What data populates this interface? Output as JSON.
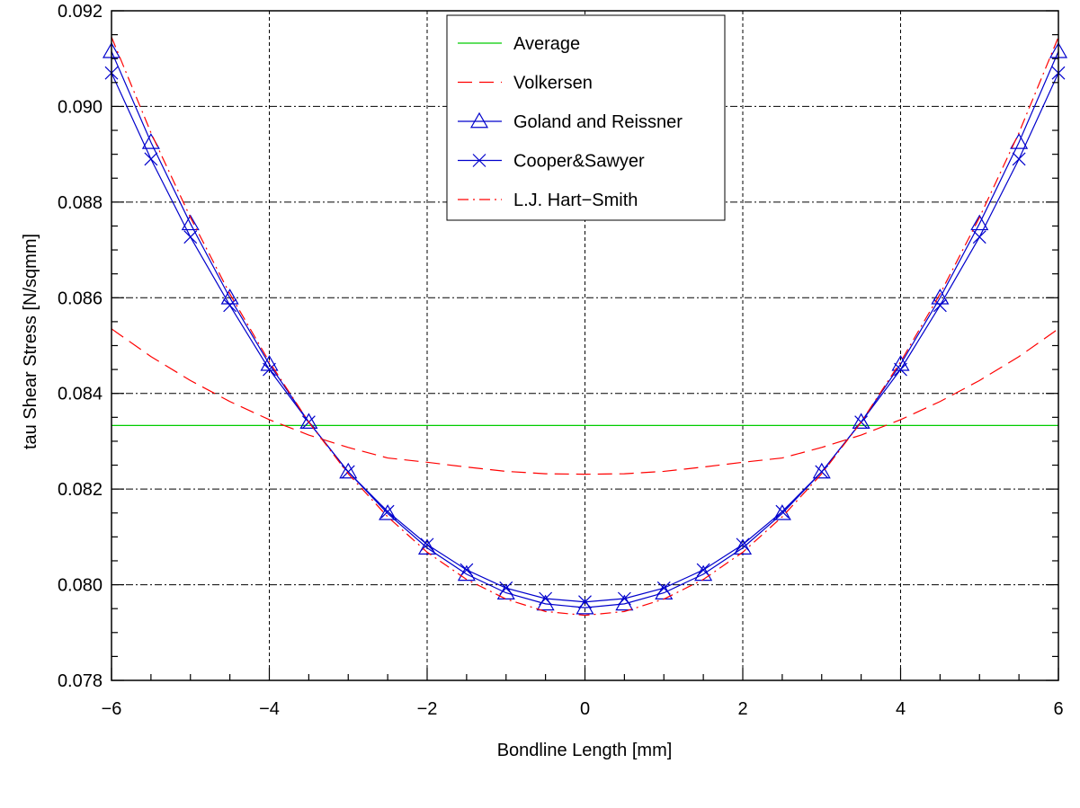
{
  "chart_data": {
    "type": "line",
    "title": "",
    "xlabel": "Bondline Length [mm]",
    "ylabel": "tau Shear Stress [N/sqmm]",
    "xlim": [
      -6,
      6
    ],
    "ylim": [
      0.078,
      0.092
    ],
    "xticks": [
      -6,
      -4,
      -2,
      0,
      2,
      4,
      6
    ],
    "xtick_labels": [
      "−6",
      "−4",
      "−2",
      "0",
      "2",
      "4",
      "6"
    ],
    "yticks": [
      0.078,
      0.08,
      0.082,
      0.084,
      0.086,
      0.088,
      0.09,
      0.092
    ],
    "ytick_labels": [
      "0.078",
      "0.080",
      "0.082",
      "0.084",
      "0.086",
      "0.088",
      "0.090",
      "0.092"
    ],
    "grid": true,
    "legend_position": "top-center",
    "series": [
      {
        "name": "Average",
        "color": "#00cc00",
        "line_style": "solid",
        "marker": "none",
        "x": [
          -6,
          6
        ],
        "y": [
          0.08333,
          0.08333
        ]
      },
      {
        "name": "Volkersen",
        "color": "#ff0000",
        "line_style": "dashed",
        "marker": "none",
        "x": [
          -6,
          -5.5,
          -5,
          -4.5,
          -4,
          -3.5,
          -3,
          -2.5,
          -2,
          -1.5,
          -1,
          -0.5,
          0,
          0.5,
          1,
          1.5,
          2,
          2.5,
          3,
          3.5,
          4,
          4.5,
          5,
          5.5,
          6
        ],
        "y": [
          0.08535,
          0.08477,
          0.08427,
          0.08383,
          0.08345,
          0.08313,
          0.08287,
          0.08265,
          0.08256,
          0.08246,
          0.08237,
          0.08232,
          0.08231,
          0.08232,
          0.08237,
          0.08246,
          0.08256,
          0.08265,
          0.08287,
          0.08313,
          0.08345,
          0.08383,
          0.08427,
          0.08477,
          0.08535
        ]
      },
      {
        "name": "Goland and Reissner",
        "color": "#0000cc",
        "line_style": "solid",
        "marker": "triangle",
        "x": [
          -6,
          -5.5,
          -5,
          -4.5,
          -4,
          -3.5,
          -3,
          -2.5,
          -2,
          -1.5,
          -1,
          -0.5,
          0,
          0.5,
          1,
          1.5,
          2,
          2.5,
          3,
          3.5,
          4,
          4.5,
          5,
          5.5,
          6
        ],
        "y": [
          0.09115,
          0.08925,
          0.08755,
          0.086,
          0.08461,
          0.0834,
          0.08236,
          0.08149,
          0.08077,
          0.08022,
          0.07983,
          0.0796,
          0.07952,
          0.0796,
          0.07983,
          0.08022,
          0.08077,
          0.08149,
          0.08236,
          0.0834,
          0.08461,
          0.086,
          0.08755,
          0.08925,
          0.09115
        ]
      },
      {
        "name": "Cooper&Sawyer",
        "color": "#0000cc",
        "line_style": "solid",
        "marker": "x",
        "x": [
          -6,
          -5.5,
          -5,
          -4.5,
          -4,
          -3.5,
          -3,
          -2.5,
          -2,
          -1.5,
          -1,
          -0.5,
          0,
          0.5,
          1,
          1.5,
          2,
          2.5,
          3,
          3.5,
          4,
          4.5,
          5,
          5.5,
          6
        ],
        "y": [
          0.0907,
          0.0889,
          0.08727,
          0.08584,
          0.0845,
          0.0834,
          0.08236,
          0.08153,
          0.08084,
          0.08031,
          0.07993,
          0.07971,
          0.07964,
          0.07971,
          0.07993,
          0.08031,
          0.08084,
          0.08153,
          0.08236,
          0.0834,
          0.0845,
          0.08584,
          0.08727,
          0.0889,
          0.0907
        ]
      },
      {
        "name": "L.J. Hart−Smith",
        "color": "#ff0000",
        "line_style": "dashdot",
        "marker": "none",
        "x": [
          -6,
          -5.5,
          -5,
          -4.5,
          -4,
          -3.5,
          -3,
          -2.5,
          -2,
          -1.5,
          -1,
          -0.5,
          0,
          0.5,
          1,
          1.5,
          2,
          2.5,
          3,
          3.5,
          4,
          4.5,
          5,
          5.5,
          6
        ],
        "y": [
          0.09145,
          0.08945,
          0.08768,
          0.08608,
          0.08466,
          0.0834,
          0.08232,
          0.08142,
          0.08068,
          0.08011,
          0.0797,
          0.07944,
          0.07936,
          0.07944,
          0.0797,
          0.08011,
          0.08068,
          0.08142,
          0.08232,
          0.0834,
          0.08466,
          0.08608,
          0.08768,
          0.08945,
          0.09145
        ]
      }
    ]
  }
}
